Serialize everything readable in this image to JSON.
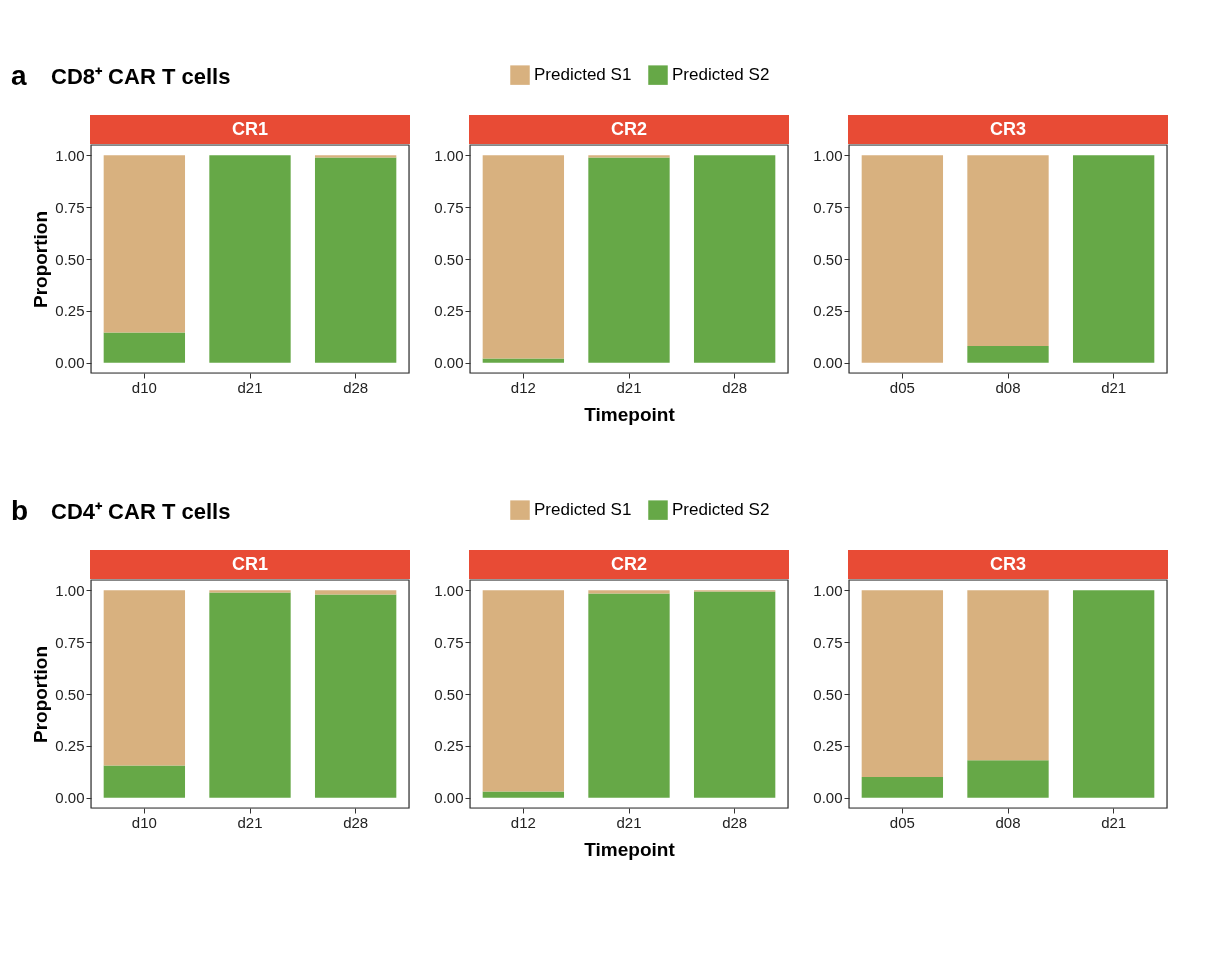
{
  "chart_data": [
    {
      "type": "bar",
      "stacked": true,
      "title": "CR1",
      "annotations": [
        "a",
        "CD8⁺ CAR T cells"
      ],
      "ylabel": "Proportion",
      "categories": [
        "d10",
        "d21",
        "d28"
      ],
      "series": [
        {
          "color": "#66a847",
          "values": [
            0.145,
            1.0,
            0.99
          ]
        },
        {
          "color": "#d8b17f",
          "values": [
            0.855,
            0,
            0.01
          ]
        }
      ],
      "ylim": [
        -0.05,
        1.05
      ],
      "yticks": [
        {
          "value": 0,
          "label": "0.00"
        },
        {
          "value": 0.25,
          "label": "0.25"
        },
        {
          "value": 0.5,
          "label": "0.50"
        },
        {
          "value": 0.75,
          "label": "0.75"
        },
        {
          "value": 1,
          "label": "1.00"
        }
      ],
      "grid": false,
      "legend": false
    },
    {
      "type": "bar",
      "stacked": true,
      "title": "CR2",
      "xlabel": "Timepoint",
      "categories": [
        "d12",
        "d21",
        "d28"
      ],
      "series": [
        {
          "name": "Predicted S2",
          "color": "#66a847",
          "values": [
            0.02,
            0.99,
            1.0
          ]
        },
        {
          "name": "Predicted S1",
          "color": "#d8b17f",
          "values": [
            0.98,
            0.01,
            0
          ]
        }
      ],
      "ylim": [
        -0.05,
        1.05
      ],
      "yticks": [
        {
          "value": 0,
          "label": "0.00"
        },
        {
          "value": 0.25,
          "label": "0.25"
        },
        {
          "value": 0.5,
          "label": "0.50"
        },
        {
          "value": 0.75,
          "label": "0.75"
        },
        {
          "value": 1,
          "label": "1.00"
        }
      ],
      "grid": false,
      "legend": "top"
    },
    {
      "type": "bar",
      "stacked": true,
      "title": "CR3",
      "categories": [
        "d05",
        "d08",
        "d21"
      ],
      "series": [
        {
          "color": "#66a847",
          "values": [
            0,
            0.08,
            1.0
          ]
        },
        {
          "color": "#d8b17f",
          "values": [
            1.0,
            0.92,
            0
          ]
        }
      ],
      "ylim": [
        -0.05,
        1.05
      ],
      "yticks": [
        {
          "value": 0,
          "label": "0.00"
        },
        {
          "value": 0.25,
          "label": "0.25"
        },
        {
          "value": 0.5,
          "label": "0.50"
        },
        {
          "value": 0.75,
          "label": "0.75"
        },
        {
          "value": 1,
          "label": "1.00"
        }
      ],
      "grid": false,
      "legend": false
    },
    {
      "type": "bar",
      "stacked": true,
      "title": "CR1",
      "annotations": [
        "b",
        "CD4⁺ CAR T cells"
      ],
      "ylabel": "Proportion",
      "categories": [
        "d10",
        "d21",
        "d28"
      ],
      "series": [
        {
          "color": "#66a847",
          "values": [
            0.155,
            0.99,
            0.98
          ]
        },
        {
          "color": "#d8b17f",
          "values": [
            0.845,
            0.01,
            0.02
          ]
        }
      ],
      "ylim": [
        -0.05,
        1.05
      ],
      "yticks": [
        {
          "value": 0,
          "label": "0.00"
        },
        {
          "value": 0.25,
          "label": "0.25"
        },
        {
          "value": 0.5,
          "label": "0.50"
        },
        {
          "value": 0.75,
          "label": "0.75"
        },
        {
          "value": 1,
          "label": "1.00"
        }
      ],
      "grid": false,
      "legend": false
    },
    {
      "type": "bar",
      "stacked": true,
      "title": "CR2",
      "xlabel": "Timepoint",
      "categories": [
        "d12",
        "d21",
        "d28"
      ],
      "series": [
        {
          "name": "Predicted S2",
          "color": "#66a847",
          "values": [
            0.03,
            0.985,
            0.995
          ]
        },
        {
          "name": "Predicted S1",
          "color": "#d8b17f",
          "values": [
            0.97,
            0.015,
            0.005
          ]
        }
      ],
      "ylim": [
        -0.05,
        1.05
      ],
      "yticks": [
        {
          "value": 0,
          "label": "0.00"
        },
        {
          "value": 0.25,
          "label": "0.25"
        },
        {
          "value": 0.5,
          "label": "0.50"
        },
        {
          "value": 0.75,
          "label": "0.75"
        },
        {
          "value": 1,
          "label": "1.00"
        }
      ],
      "grid": false,
      "legend": "top"
    },
    {
      "type": "bar",
      "stacked": true,
      "title": "CR3",
      "categories": [
        "d05",
        "d08",
        "d21"
      ],
      "series": [
        {
          "color": "#66a847",
          "values": [
            0.1,
            0.18,
            1.0
          ]
        },
        {
          "color": "#d8b17f",
          "values": [
            0.9,
            0.82,
            0
          ]
        }
      ],
      "ylim": [
        -0.05,
        1.05
      ],
      "yticks": [
        {
          "value": 0,
          "label": "0.00"
        },
        {
          "value": 0.25,
          "label": "0.25"
        },
        {
          "value": 0.5,
          "label": "0.50"
        },
        {
          "value": 0.75,
          "label": "0.75"
        },
        {
          "value": 1,
          "label": "1.00"
        }
      ],
      "grid": false,
      "legend": false
    }
  ]
}
